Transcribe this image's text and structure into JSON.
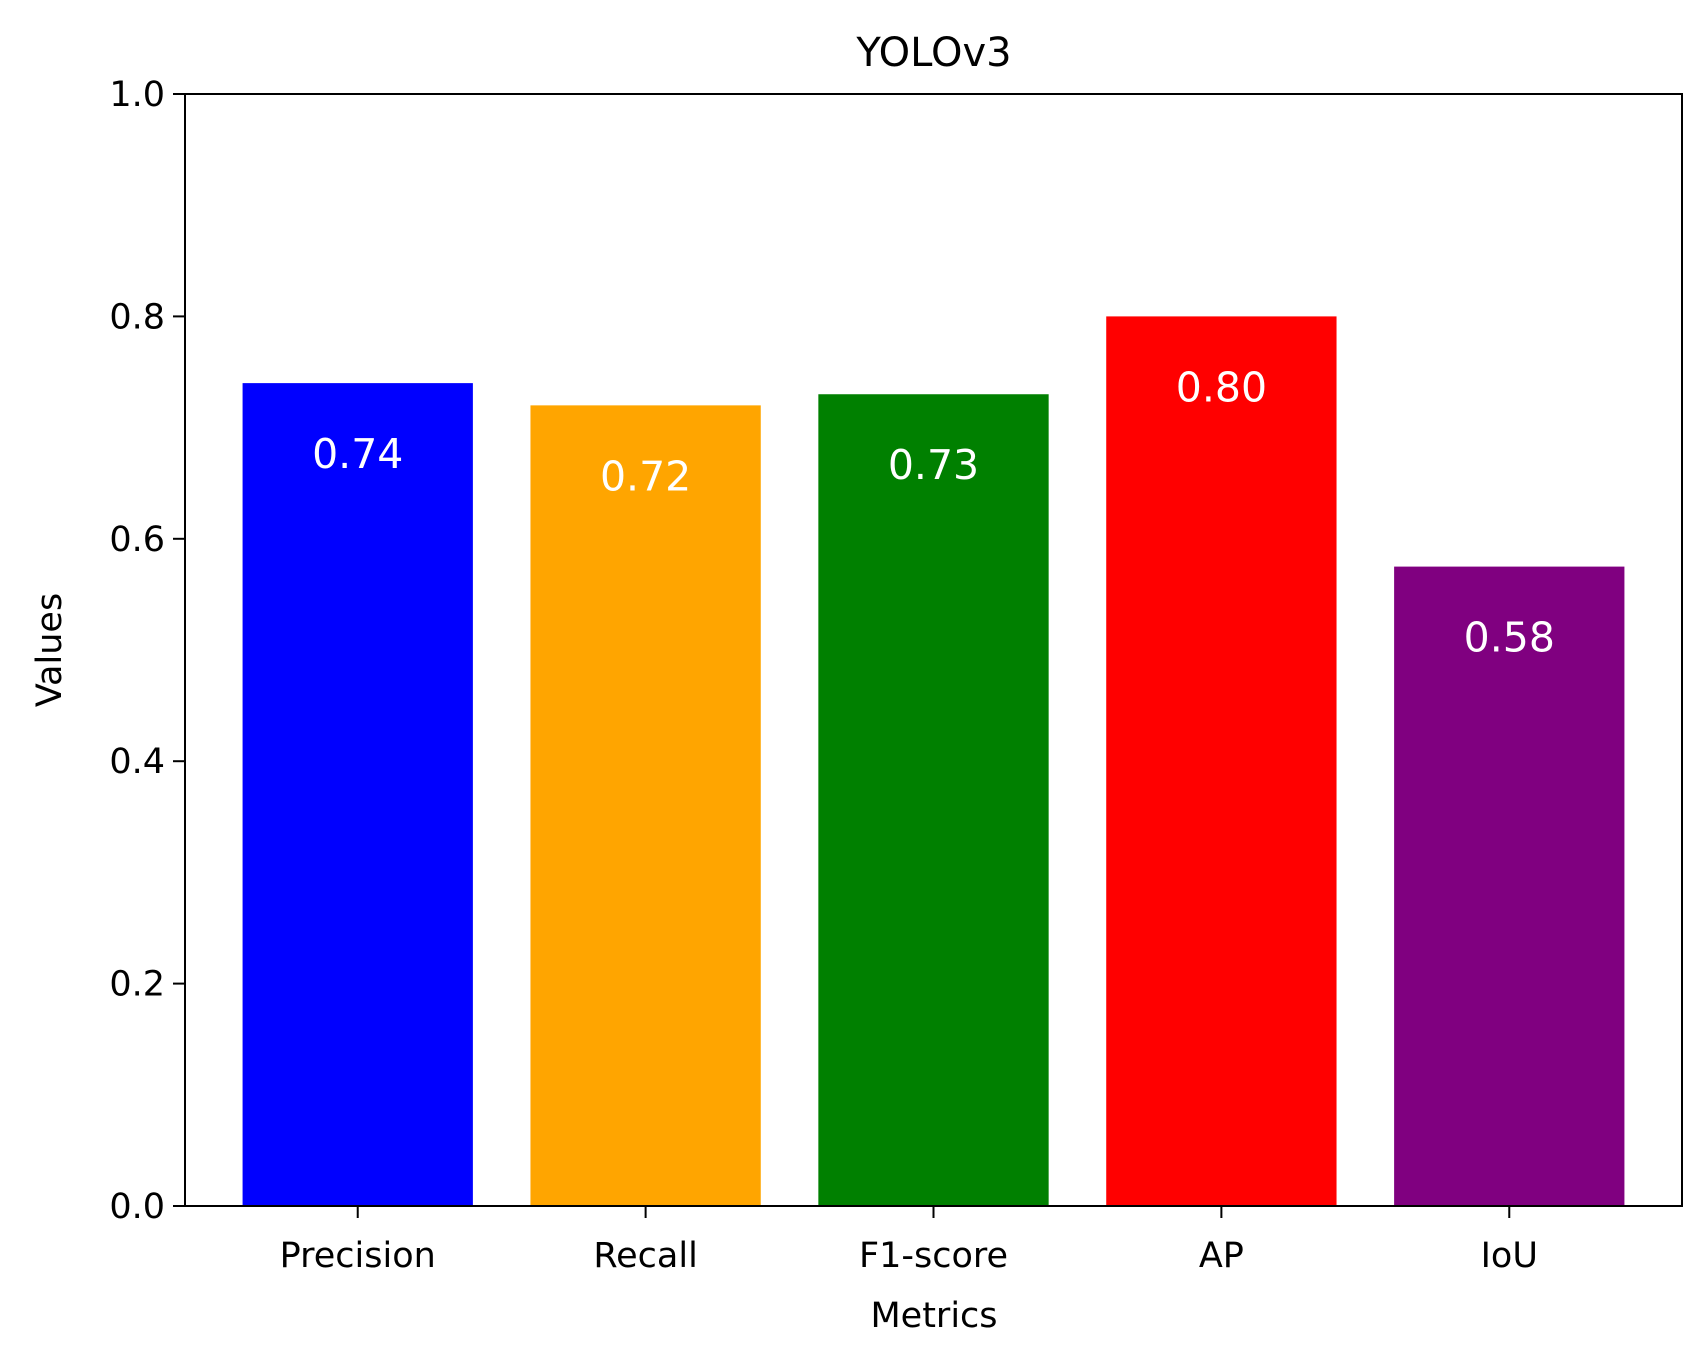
{
  "chart_data": {
    "type": "bar",
    "title": "YOLOv3",
    "xlabel": "Metrics",
    "ylabel": "Values",
    "categories": [
      "Precision",
      "Recall",
      "F1-score",
      "AP",
      "IoU"
    ],
    "values": [
      0.74,
      0.72,
      0.73,
      0.8,
      0.575
    ],
    "value_labels": [
      "0.74",
      "0.72",
      "0.73",
      "0.80",
      "0.58"
    ],
    "colors": [
      "#0000ff",
      "#ffa500",
      "#008000",
      "#ff0000",
      "#800080"
    ],
    "ylim": [
      0,
      1.0
    ],
    "yticks": [
      0.0,
      0.2,
      0.4,
      0.6,
      0.8,
      1.0
    ],
    "ytick_labels": [
      "0.0",
      "0.2",
      "0.4",
      "0.6",
      "0.8",
      "1.0"
    ],
    "grid": false,
    "legend": false
  }
}
